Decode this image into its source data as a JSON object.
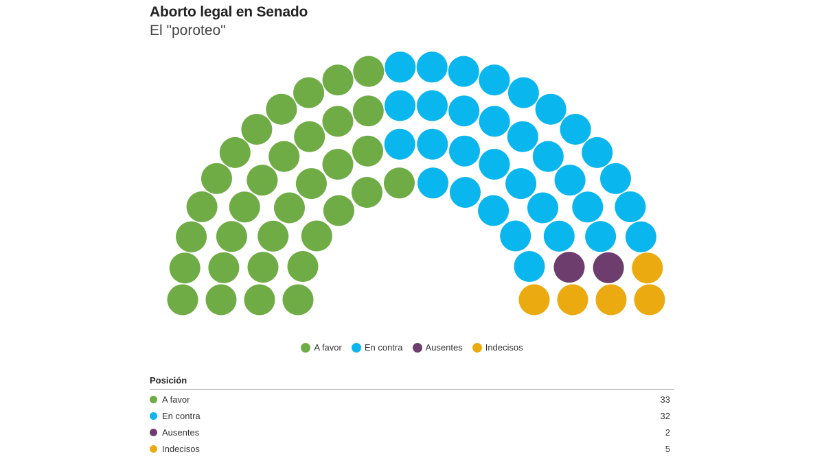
{
  "chart_data": {
    "type": "parliament",
    "title": "Aborto legal en Senado",
    "subtitle": "El \"poroteo\"",
    "total_seats": 72,
    "rows": 4,
    "series": [
      {
        "name": "A favor",
        "value": 33,
        "color": "#6fac46"
      },
      {
        "name": "En contra",
        "value": 32,
        "color": "#0ab6ee"
      },
      {
        "name": "Ausentes",
        "value": 2,
        "color": "#6d3d6e"
      },
      {
        "name": "Indecisos",
        "value": 5,
        "color": "#ebaa10"
      }
    ],
    "legend_position": "bottom-center",
    "table": {
      "header": "Posición"
    }
  }
}
